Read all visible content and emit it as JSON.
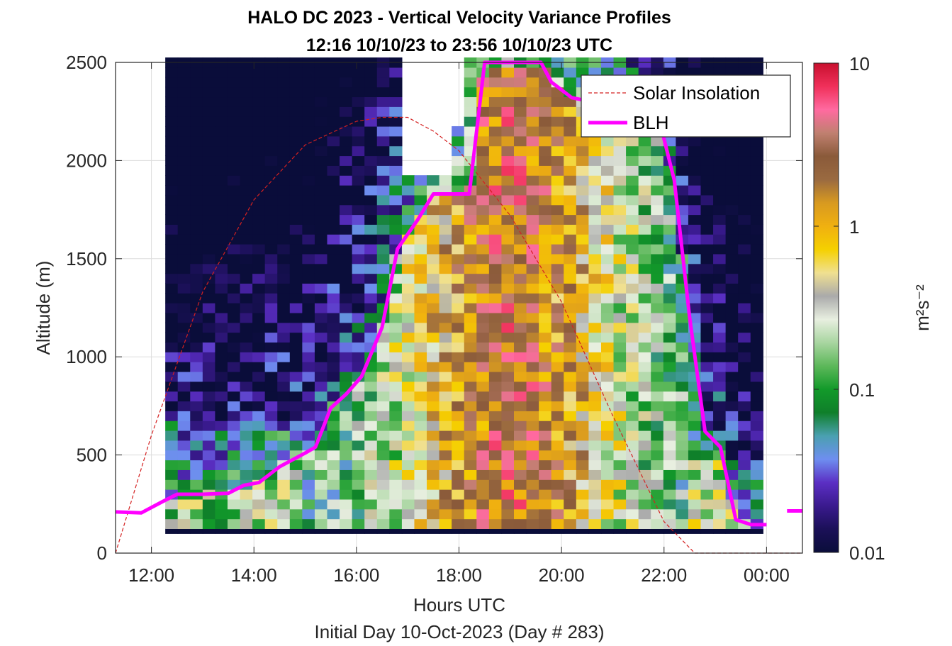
{
  "chart_data": {
    "type": "heatmap",
    "title": "HALO DC 2023 - Vertical Velocity Variance Profiles",
    "subtitle": "12:16 10/10/23 to 23:56 10/10/23  UTC",
    "xlabel": "Hours UTC",
    "ylabel": "Altitude (m)",
    "footer": "Initial Day 10-Oct-2023 (Day # 283)",
    "x_ticks": [
      12,
      14,
      16,
      18,
      20,
      22,
      24
    ],
    "x_tick_labels": [
      "12:00",
      "14:00",
      "16:00",
      "18:00",
      "20:00",
      "22:00",
      "00:00"
    ],
    "xlim": [
      11.3,
      24.7
    ],
    "y_ticks": [
      0,
      500,
      1000,
      1500,
      2000,
      2500
    ],
    "y_tick_labels": [
      "0",
      "500",
      "1000",
      "1500",
      "2000",
      "2500"
    ],
    "ylim": [
      0,
      2500
    ],
    "grid": true,
    "colorbar": {
      "label": "m²s⁻²",
      "scale": "log",
      "range": [
        0.01,
        10
      ],
      "tick_values": [
        0.01,
        0.1,
        1,
        10
      ],
      "tick_labels": [
        "0.01",
        "0.1",
        "1",
        "10"
      ],
      "colors": [
        "#0a0d3a",
        "#1b1058",
        "#3a1a8e",
        "#5b2fc4",
        "#6e8ef0",
        "#4aa0b0",
        "#0f7f2a",
        "#129a2a",
        "#5db85a",
        "#a8d5a0",
        "#e8efe0",
        "#aaaaaa",
        "#f0e090",
        "#f5d000",
        "#f0b010",
        "#d89a20",
        "#9a6a40",
        "#8a5a3a",
        "#c08070",
        "#ff6aa0",
        "#f0305a",
        "#c8102e"
      ]
    },
    "variance_grid": {
      "x_range": [
        12.27,
        23.93
      ],
      "n_time_columns": 48,
      "altitude_bottom": 100,
      "altitude_top": 2500,
      "n_altitude_rows": 48,
      "description": "Low-level variance 0.01–0.1 m²s⁻² before 15:00 and after 22:30; 0.3–3 m²s⁻² in convective mixed layer 16:00–22:00 reaching ~2500 m near 18:30–19:45; data gap above ~1900 m around 17:00–17:45."
    },
    "series": [
      {
        "name": "Solar Insolation",
        "style": "dashed",
        "color": "#d42020",
        "x": [
          11.3,
          12,
          13,
          14,
          15,
          16,
          16.5,
          17,
          17.5,
          18,
          19,
          20,
          21,
          22,
          22.6,
          24.7
        ],
        "y": [
          0,
          600,
          1330,
          1800,
          2080,
          2200,
          2220,
          2220,
          2150,
          2050,
          1720,
          1280,
          700,
          160,
          0,
          0
        ]
      },
      {
        "name": "BLH",
        "style": "solid",
        "color": "#ff00ff",
        "x": [
          11.3,
          11.8,
          12.2,
          12.5,
          13.0,
          13.5,
          13.8,
          14.1,
          14.5,
          15.0,
          15.2,
          15.5,
          15.8,
          16.1,
          16.5,
          16.8,
          17.2,
          17.5,
          17.8,
          18.2,
          18.5,
          19.6,
          19.8,
          20.2,
          20.6,
          21.0,
          21.8,
          22.2,
          22.5,
          22.8,
          23.1,
          23.4,
          23.7,
          24.0
        ],
        "y": [
          210,
          205,
          260,
          300,
          300,
          305,
          345,
          360,
          440,
          510,
          540,
          740,
          810,
          900,
          1150,
          1550,
          1700,
          1830,
          1830,
          1830,
          2500,
          2500,
          2400,
          2320,
          2300,
          2320,
          2320,
          1900,
          1200,
          620,
          540,
          170,
          145,
          145
        ]
      },
      {
        "name": "BLH",
        "style": "solid",
        "color": "#ff00ff",
        "x": [
          24.4,
          24.7
        ],
        "y": [
          215,
          215
        ]
      }
    ],
    "legend": {
      "placement": "top-right",
      "entries": [
        "Solar Insolation",
        "BLH"
      ]
    }
  }
}
